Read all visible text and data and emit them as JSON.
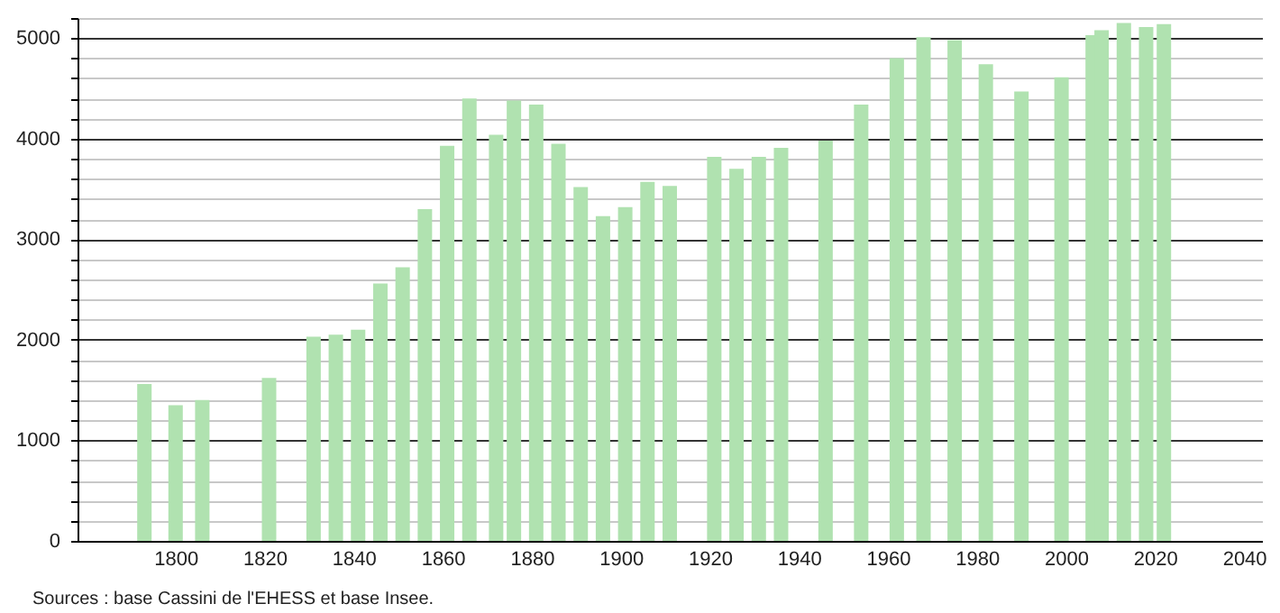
{
  "chart_data": {
    "type": "bar",
    "x": [
      1793,
      1800,
      1806,
      1821,
      1831,
      1836,
      1841,
      1846,
      1851,
      1856,
      1861,
      1866,
      1872,
      1876,
      1881,
      1886,
      1891,
      1896,
      1901,
      1906,
      1911,
      1921,
      1926,
      1931,
      1936,
      1946,
      1954,
      1962,
      1968,
      1975,
      1982,
      1990,
      1999,
      2006,
      2008,
      2013,
      2018,
      2022
    ],
    "values": [
      1560,
      1350,
      1400,
      1620,
      2030,
      2050,
      2100,
      2560,
      2720,
      3300,
      3930,
      4400,
      4040,
      4380,
      4340,
      3950,
      3520,
      3230,
      3320,
      3570,
      3530,
      3820,
      3700,
      3820,
      3910,
      3980,
      4340,
      4800,
      5010,
      4980,
      4740,
      4470,
      4610,
      5030,
      5080,
      5150,
      5110,
      5140
    ],
    "color": "#b0e2b0",
    "xlim": [
      1780,
      2042
    ],
    "xticks": [
      1800,
      1820,
      1840,
      1860,
      1880,
      1900,
      1920,
      1940,
      1960,
      1980,
      2000,
      2020,
      2040
    ],
    "ylim": [
      0,
      5200
    ],
    "yticks": [
      0,
      {
        "value": 200,
        "label": null
      },
      {
        "value": 400,
        "label": null
      },
      {
        "value": 600,
        "label": null
      },
      {
        "value": 800,
        "label": null
      },
      1000,
      {
        "value": 1200,
        "label": null
      },
      {
        "value": 1400,
        "label": null
      },
      {
        "value": 1600,
        "label": null
      },
      {
        "value": 1800,
        "label": null
      },
      2000,
      {
        "value": 2200,
        "label": null
      },
      {
        "value": 2400,
        "label": null
      },
      {
        "value": 2600,
        "label": null
      },
      {
        "value": 2800,
        "label": null
      },
      3000,
      {
        "value": 3200,
        "label": null
      },
      {
        "value": 3400,
        "label": null
      },
      {
        "value": 3600,
        "label": null
      },
      {
        "value": 3800,
        "label": null
      },
      4000,
      {
        "value": 4200,
        "label": null
      },
      {
        "value": 4400,
        "label": null
      },
      {
        "value": 4600,
        "label": null
      },
      {
        "value": 4800,
        "label": null
      },
      5000,
      {
        "value": 5200,
        "label": null
      }
    ],
    "grid": "y",
    "annotations": [
      "Sources : base Cassini de l'EHESS et base Insee."
    ]
  }
}
